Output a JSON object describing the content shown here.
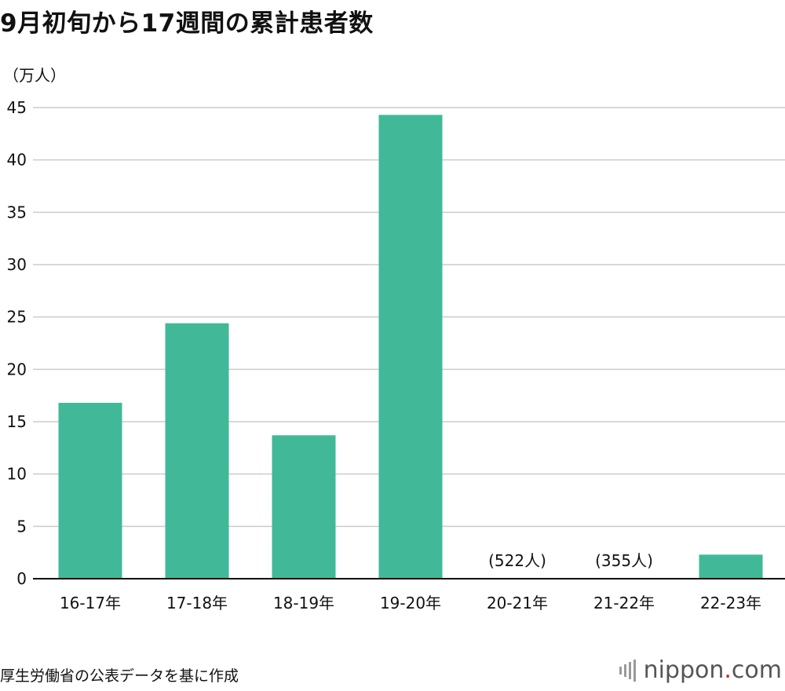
{
  "page": {
    "title": "9月初旬から17週間の累計患者数",
    "unit_label": "（万人）",
    "source": "厚生労働省の公表データを基に作成",
    "logo": {
      "name": "nippon",
      "dot": ".",
      "tld": "com",
      "icon": "nippon-bars-icon"
    }
  },
  "colors": {
    "bar": "#41b999",
    "grid": "#cccccc",
    "axis": "#111111",
    "logo_dot": "#c0272d"
  },
  "chart_data": {
    "type": "bar",
    "title": "9月初旬から17週間の累計患者数",
    "xlabel": "",
    "ylabel": "（万人）",
    "ylim": [
      0,
      45
    ],
    "yticks": [
      0,
      5,
      10,
      15,
      20,
      25,
      30,
      35,
      40,
      45
    ],
    "grid": true,
    "categories": [
      "16-17年",
      "17-18年",
      "18-19年",
      "19-20年",
      "20-21年",
      "21-22年",
      "22-23年"
    ],
    "values": [
      16.8,
      24.4,
      13.7,
      44.3,
      0.0522,
      0.0355,
      2.3
    ],
    "annotations": [
      "",
      "",
      "",
      "",
      "(522人)",
      "(355人)",
      ""
    ]
  }
}
